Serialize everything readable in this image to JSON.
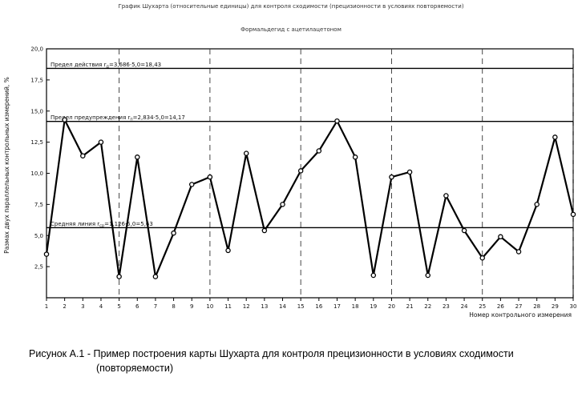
{
  "chart_data": {
    "type": "line",
    "title": "График Шухарта (относительные единицы) для контроля сходимости (прецизионности в условиях повторяемости)",
    "subtitle": "Формальдегид с ацетилацетоном",
    "xlabel": "Номер контрольного измерения",
    "ylabel": "Размах двух параллельных контрольных измерений, %",
    "x": [
      1,
      2,
      3,
      4,
      5,
      6,
      7,
      8,
      9,
      10,
      11,
      12,
      13,
      14,
      15,
      16,
      17,
      18,
      19,
      20,
      21,
      22,
      23,
      24,
      25,
      26,
      27,
      28,
      29,
      30
    ],
    "series": [
      {
        "values": [
          3.5,
          14.3,
          11.4,
          12.5,
          1.7,
          11.3,
          1.7,
          5.2,
          9.1,
          9.7,
          3.8,
          11.6,
          5.4,
          7.5,
          10.2,
          11.8,
          14.2,
          11.3,
          1.8,
          9.7,
          10.1,
          1.8,
          8.2,
          5.4,
          3.2,
          4.9,
          3.7,
          7.5,
          12.9,
          6.7
        ]
      }
    ],
    "xticks": [
      "1",
      "2",
      "3",
      "4",
      "5",
      "6",
      "7",
      "8",
      "9",
      "10",
      "11",
      "12",
      "13",
      "14",
      "15",
      "16",
      "17",
      "18",
      "19",
      "20",
      "21",
      "22",
      "23",
      "24",
      "25",
      "26",
      "27",
      "28",
      "29",
      "30"
    ],
    "yticks": [
      {
        "value": 2.5,
        "label": "2,5"
      },
      {
        "value": 5.0,
        "label": "5,0"
      },
      {
        "value": 7.5,
        "label": "7,5"
      },
      {
        "value": 10.0,
        "label": "10,0"
      },
      {
        "value": 12.5,
        "label": "12,5"
      },
      {
        "value": 15.0,
        "label": "15,0"
      },
      {
        "value": 17.5,
        "label": "17,5"
      },
      {
        "value": 20.0,
        "label": "20,0"
      }
    ],
    "ylim": [
      0,
      20
    ],
    "xlim": [
      1,
      30
    ],
    "vertical_dashed_at": [
      5,
      10,
      15,
      20,
      25,
      30
    ],
    "control_lines": [
      {
        "value": 18.43,
        "label": "Предел действия r",
        "sub": "д",
        "formula": "=3,686·5,0=18,43"
      },
      {
        "value": 14.17,
        "label": "Предел предупреждения r",
        "sub": "п",
        "formula": "=2,834·5,0=14,17"
      },
      {
        "value": 5.63,
        "label": "Средняя линия r",
        "sub": "ср",
        "formula": "=1,126·5,0=5,63"
      }
    ],
    "grid": false,
    "line_color": "#000000"
  },
  "caption": {
    "line1": "Рисунок А.1 - Пример построения карты Шухарта для контроля прецизионности в условиях сходимости",
    "line2": "(повторяемости)"
  }
}
